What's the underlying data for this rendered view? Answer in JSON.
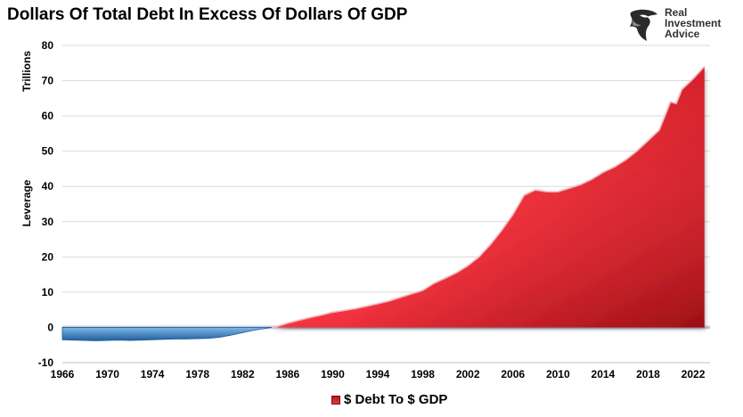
{
  "brand": {
    "logo_text": "Real\nInvestment\nAdvice",
    "logo_icon": "eagle-head-icon"
  },
  "chart_data": {
    "type": "area",
    "title": "Dollars Of Total Debt In Excess Of Dollars Of GDP",
    "ylabel_top": "Trillions",
    "ylabel_mid": "Leverage",
    "xlabel": "",
    "ylim": [
      -10,
      80
    ],
    "xlim": [
      1966,
      2023.5
    ],
    "yticks": [
      -10,
      0,
      10,
      20,
      30,
      40,
      50,
      60,
      70,
      80
    ],
    "xticks": [
      1966,
      1970,
      1974,
      1978,
      1982,
      1986,
      1990,
      1994,
      1998,
      2002,
      2006,
      2010,
      2014,
      2018,
      2022
    ],
    "grid": "horizontal",
    "legend_position": "bottom",
    "negative_color": "#2f7fc4",
    "positive_color": "#d92b33",
    "series": [
      {
        "name": "$ Debt To $ GDP",
        "x": [
          1966,
          1967,
          1968,
          1969,
          1970,
          1971,
          1972,
          1973,
          1974,
          1975,
          1976,
          1977,
          1978,
          1979,
          1980,
          1981,
          1982,
          1983,
          1984,
          1985,
          1986,
          1987,
          1988,
          1989,
          1990,
          1991,
          1992,
          1993,
          1994,
          1995,
          1996,
          1997,
          1998,
          1999,
          2000,
          2001,
          2002,
          2003,
          2004,
          2005,
          2006,
          2007,
          2008,
          2009,
          2010,
          2011,
          2012,
          2013,
          2014,
          2015,
          2016,
          2017,
          2018,
          2019,
          2020,
          2020.5,
          2021,
          2022,
          2023
        ],
        "values": [
          -3.5,
          -3.6,
          -3.7,
          -3.8,
          -3.7,
          -3.6,
          -3.7,
          -3.6,
          -3.5,
          -3.4,
          -3.3,
          -3.3,
          -3.2,
          -3.1,
          -2.8,
          -2.2,
          -1.5,
          -0.8,
          -0.3,
          0.2,
          1.2,
          2.0,
          2.8,
          3.5,
          4.3,
          4.8,
          5.3,
          6.0,
          6.7,
          7.5,
          8.5,
          9.5,
          10.5,
          12.5,
          14.0,
          15.5,
          17.5,
          20.0,
          23.5,
          27.5,
          32.0,
          37.5,
          39.0,
          38.5,
          38.5,
          39.5,
          40.5,
          42.0,
          44.0,
          45.5,
          47.5,
          50.0,
          53.0,
          56.0,
          64.0,
          63.5,
          67.5,
          70.5,
          74.0
        ]
      }
    ]
  }
}
